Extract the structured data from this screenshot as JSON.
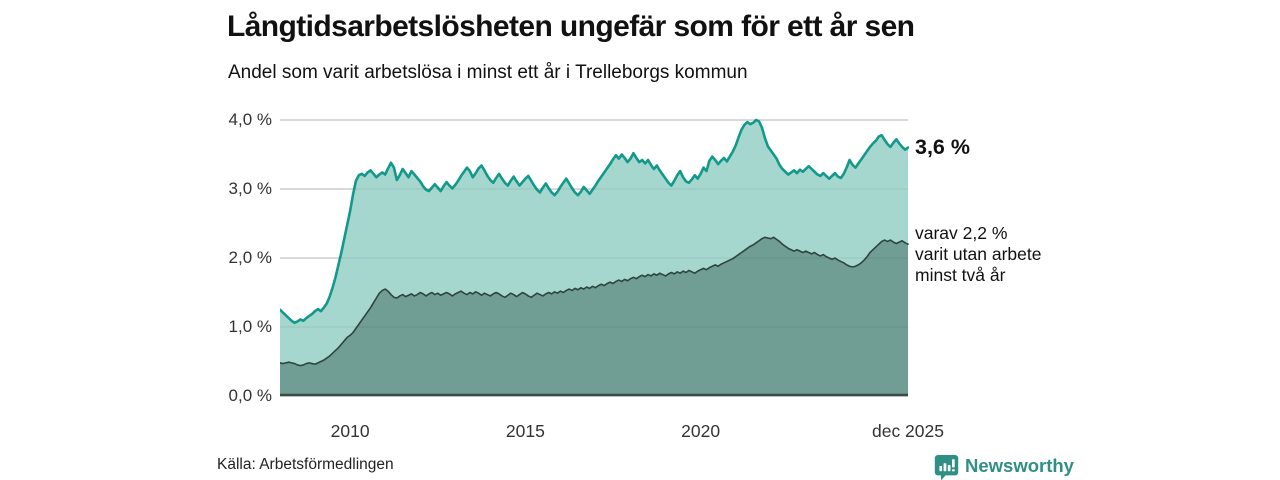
{
  "header": {
    "title": "Långtidsarbetslösheten ungefär som för ett år sen",
    "subtitle": "Andel som varit arbetslösa i minst ett år i Trelleborgs kommun"
  },
  "chart_data": {
    "type": "area",
    "title": "Långtidsarbetslösheten ungefär som för ett år sen",
    "subtitle": "Andel som varit arbetslösa i minst ett år i Trelleborgs kommun",
    "unit": "%",
    "x_domain": [
      2008.0,
      2025.917
    ],
    "x_step_months": 1,
    "ylim": [
      0,
      4
    ],
    "grid": true,
    "legend_position": "right-of-line-ends",
    "y_ticks": [
      {
        "label": "4,0 %",
        "value": 4
      },
      {
        "label": "3,0 %",
        "value": 3
      },
      {
        "label": "2,0 %",
        "value": 2
      },
      {
        "label": "1,0 %",
        "value": 1
      },
      {
        "label": "0,0 %",
        "value": 0
      }
    ],
    "x_ticks": [
      {
        "label": "2010",
        "year": 2010
      },
      {
        "label": "2015",
        "year": 2015
      },
      {
        "label": "2020",
        "year": 2020
      },
      {
        "label": "dec 2025",
        "year": 2025.917
      }
    ],
    "series": [
      {
        "name": "Andel arbetslösa minst ett år",
        "line_color": "#12998a",
        "fill_color": "#a6d7cf",
        "line_width": 2.6,
        "end_label": "3,6 %",
        "end_value": 3.6,
        "values": [
          1.25,
          1.21,
          1.17,
          1.13,
          1.09,
          1.06,
          1.08,
          1.11,
          1.09,
          1.13,
          1.16,
          1.19,
          1.23,
          1.26,
          1.23,
          1.28,
          1.34,
          1.44,
          1.57,
          1.72,
          1.9,
          2.08,
          2.28,
          2.48,
          2.68,
          2.92,
          3.12,
          3.2,
          3.22,
          3.19,
          3.24,
          3.27,
          3.22,
          3.17,
          3.21,
          3.24,
          3.21,
          3.3,
          3.38,
          3.31,
          3.13,
          3.2,
          3.29,
          3.23,
          3.17,
          3.26,
          3.21,
          3.16,
          3.11,
          3.04,
          2.99,
          2.97,
          3.02,
          3.07,
          3.02,
          2.97,
          3.04,
          3.1,
          3.05,
          3.01,
          3.06,
          3.12,
          3.19,
          3.25,
          3.31,
          3.26,
          3.17,
          3.23,
          3.3,
          3.34,
          3.27,
          3.19,
          3.13,
          3.09,
          3.16,
          3.22,
          3.15,
          3.09,
          3.05,
          3.12,
          3.18,
          3.11,
          3.05,
          3.1,
          3.15,
          3.19,
          3.12,
          3.05,
          2.99,
          2.95,
          3.02,
          3.08,
          3.01,
          2.95,
          2.91,
          2.96,
          3.03,
          3.09,
          3.15,
          3.08,
          3.01,
          2.95,
          2.91,
          2.96,
          3.03,
          2.98,
          2.93,
          2.99,
          3.05,
          3.12,
          3.18,
          3.24,
          3.3,
          3.36,
          3.43,
          3.49,
          3.44,
          3.5,
          3.45,
          3.39,
          3.44,
          3.52,
          3.45,
          3.39,
          3.42,
          3.37,
          3.42,
          3.35,
          3.29,
          3.34,
          3.27,
          3.21,
          3.15,
          3.09,
          3.05,
          3.12,
          3.2,
          3.26,
          3.17,
          3.11,
          3.09,
          3.14,
          3.2,
          3.15,
          3.22,
          3.31,
          3.26,
          3.41,
          3.47,
          3.42,
          3.36,
          3.41,
          3.45,
          3.4,
          3.47,
          3.54,
          3.63,
          3.75,
          3.86,
          3.93,
          3.97,
          3.94,
          3.96,
          4.0,
          3.98,
          3.89,
          3.74,
          3.62,
          3.56,
          3.5,
          3.44,
          3.35,
          3.29,
          3.25,
          3.21,
          3.24,
          3.27,
          3.23,
          3.28,
          3.25,
          3.29,
          3.33,
          3.29,
          3.25,
          3.21,
          3.19,
          3.23,
          3.19,
          3.15,
          3.19,
          3.23,
          3.18,
          3.16,
          3.22,
          3.31,
          3.42,
          3.35,
          3.31,
          3.37,
          3.43,
          3.49,
          3.55,
          3.61,
          3.66,
          3.7,
          3.76,
          3.78,
          3.71,
          3.65,
          3.61,
          3.67,
          3.72,
          3.66,
          3.61,
          3.57,
          3.6
        ]
      },
      {
        "name": "varav utan arbete minst två år",
        "line_color": "#2e453f",
        "fill_color": "#709d94",
        "line_width": 1.6,
        "end_label_lines": [
          "varav 2,2 %",
          "varit utan arbete",
          "minst två år"
        ],
        "end_value": 2.2,
        "values": [
          0.48,
          0.47,
          0.48,
          0.49,
          0.48,
          0.47,
          0.45,
          0.44,
          0.45,
          0.47,
          0.48,
          0.47,
          0.46,
          0.48,
          0.5,
          0.52,
          0.55,
          0.58,
          0.62,
          0.66,
          0.7,
          0.75,
          0.8,
          0.85,
          0.88,
          0.92,
          0.98,
          1.04,
          1.1,
          1.16,
          1.22,
          1.28,
          1.35,
          1.42,
          1.49,
          1.53,
          1.55,
          1.52,
          1.47,
          1.43,
          1.42,
          1.45,
          1.47,
          1.44,
          1.46,
          1.48,
          1.45,
          1.47,
          1.5,
          1.48,
          1.45,
          1.48,
          1.5,
          1.47,
          1.49,
          1.46,
          1.48,
          1.5,
          1.48,
          1.45,
          1.48,
          1.5,
          1.52,
          1.49,
          1.47,
          1.5,
          1.48,
          1.51,
          1.49,
          1.46,
          1.49,
          1.47,
          1.45,
          1.48,
          1.5,
          1.48,
          1.45,
          1.43,
          1.46,
          1.49,
          1.47,
          1.44,
          1.47,
          1.5,
          1.48,
          1.45,
          1.43,
          1.46,
          1.49,
          1.47,
          1.45,
          1.48,
          1.5,
          1.48,
          1.51,
          1.49,
          1.52,
          1.5,
          1.53,
          1.55,
          1.53,
          1.56,
          1.54,
          1.57,
          1.55,
          1.58,
          1.56,
          1.59,
          1.57,
          1.6,
          1.62,
          1.6,
          1.63,
          1.65,
          1.63,
          1.66,
          1.68,
          1.66,
          1.69,
          1.67,
          1.7,
          1.72,
          1.7,
          1.73,
          1.75,
          1.73,
          1.76,
          1.74,
          1.77,
          1.75,
          1.78,
          1.76,
          1.74,
          1.77,
          1.79,
          1.77,
          1.8,
          1.78,
          1.81,
          1.79,
          1.82,
          1.8,
          1.78,
          1.81,
          1.83,
          1.85,
          1.83,
          1.86,
          1.88,
          1.9,
          1.88,
          1.91,
          1.93,
          1.95,
          1.97,
          1.99,
          2.02,
          2.05,
          2.08,
          2.11,
          2.14,
          2.17,
          2.19,
          2.22,
          2.25,
          2.28,
          2.3,
          2.29,
          2.28,
          2.3,
          2.27,
          2.24,
          2.2,
          2.17,
          2.14,
          2.12,
          2.1,
          2.12,
          2.1,
          2.08,
          2.1,
          2.08,
          2.06,
          2.08,
          2.05,
          2.03,
          2.05,
          2.02,
          2.0,
          1.98,
          2.0,
          1.97,
          1.95,
          1.93,
          1.9,
          1.88,
          1.87,
          1.88,
          1.9,
          1.93,
          1.97,
          2.02,
          2.08,
          2.12,
          2.16,
          2.2,
          2.24,
          2.26,
          2.24,
          2.26,
          2.23,
          2.21,
          2.23,
          2.25,
          2.22,
          2.2
        ]
      }
    ],
    "colors": {
      "grid": "#d9d9d9",
      "grid_overlay": "rgba(30,50,45,0.08)",
      "axis_baseline": "#3c4a46",
      "tick_text": "#333333"
    }
  },
  "footer": {
    "source": "Källa: Arbetsförmedlingen",
    "brand": "Newsworthy",
    "brand_color": "#2f8f85"
  }
}
